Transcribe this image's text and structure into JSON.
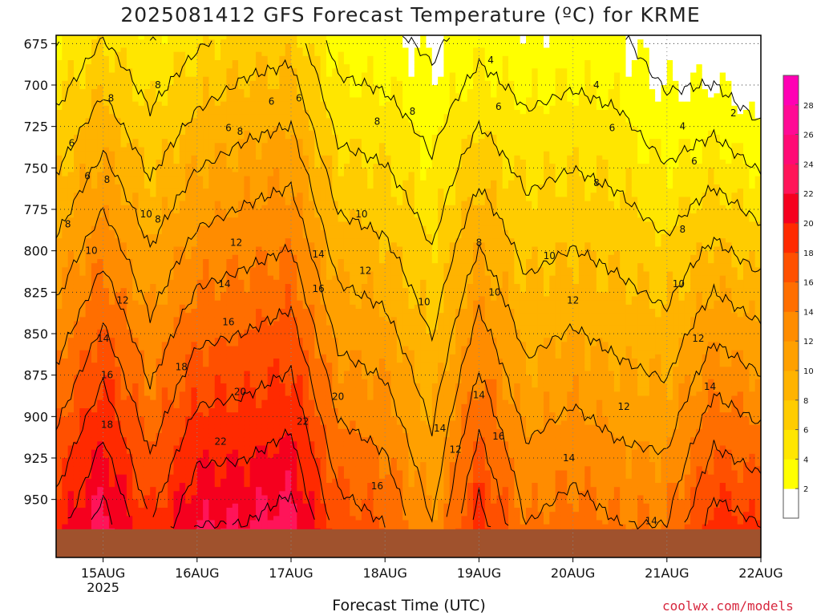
{
  "chart_data": {
    "type": "heatmap",
    "title": "2025081412 GFS Forecast Temperature (ºC) for KRME",
    "xlabel": "Forecast Time (UTC)",
    "ylabel": "",
    "x_ticks": [
      {
        "label": "15AUG",
        "sub": "2025",
        "value": 0
      },
      {
        "label": "16AUG",
        "sub": "",
        "value": 24
      },
      {
        "label": "17AUG",
        "sub": "",
        "value": 48
      },
      {
        "label": "18AUG",
        "sub": "",
        "value": 72
      },
      {
        "label": "19AUG",
        "sub": "",
        "value": 96
      },
      {
        "label": "20AUG",
        "sub": "",
        "value": 120
      },
      {
        "label": "21AUG",
        "sub": "",
        "value": 144
      },
      {
        "label": "22AUG",
        "sub": "",
        "value": 168
      }
    ],
    "xlim": [
      -12,
      168
    ],
    "y_ticks": [
      675,
      700,
      725,
      750,
      775,
      800,
      825,
      850,
      875,
      900,
      925,
      950
    ],
    "ylim": [
      670,
      985
    ],
    "colorbar": {
      "levels": [
        0,
        2,
        4,
        6,
        8,
        10,
        12,
        14,
        16,
        18,
        20,
        22,
        24,
        26,
        28,
        30
      ],
      "labels": [
        "2",
        "4",
        "6",
        "8",
        "10",
        "12",
        "14",
        "16",
        "18",
        "20",
        "22",
        "24",
        "26",
        "28"
      ],
      "colors": [
        "#ffffff",
        "#ffff00",
        "#ffe600",
        "#ffcc00",
        "#ffb300",
        "#ffa000",
        "#ff8c00",
        "#ff6e00",
        "#ff5000",
        "#ff2a00",
        "#f5001e",
        "#ff1459",
        "#ff0a75",
        "#ff0a95",
        "#ff00b4"
      ]
    },
    "profile_times": [
      -12,
      0,
      12,
      24,
      36,
      48,
      60,
      72,
      84,
      96,
      108,
      120,
      132,
      144,
      156,
      168
    ],
    "profile_surface_temp": [
      19,
      23,
      18,
      22,
      22,
      23,
      17,
      16,
      12,
      19,
      14,
      15,
      14,
      14,
      19,
      18
    ],
    "profile_lapse_per_100hPa": [
      5.2,
      5.8,
      4.8,
      5.6,
      5.2,
      5.4,
      4.8,
      4.6,
      3.6,
      5.4,
      4.0,
      4.2,
      4.0,
      4.6,
      6.4,
      6.6
    ],
    "profile_ref_pressure": 965,
    "ground_pressure": 968,
    "ground_color": "#a0522d",
    "contour_labels": [
      {
        "text": "8",
        "x": 2,
        "y": 708
      },
      {
        "text": "8",
        "x": 14,
        "y": 700
      },
      {
        "text": "6",
        "x": -8,
        "y": 735
      },
      {
        "text": "6",
        "x": -4,
        "y": 755
      },
      {
        "text": "8",
        "x": 1,
        "y": 757
      },
      {
        "text": "8",
        "x": -9,
        "y": 784
      },
      {
        "text": "10",
        "x": -3,
        "y": 800
      },
      {
        "text": "10",
        "x": 11,
        "y": 778
      },
      {
        "text": "8",
        "x": 14,
        "y": 781
      },
      {
        "text": "12",
        "x": 5,
        "y": 830
      },
      {
        "text": "14",
        "x": 0,
        "y": 853
      },
      {
        "text": "16",
        "x": 1,
        "y": 875
      },
      {
        "text": "18",
        "x": 1,
        "y": 905
      },
      {
        "text": "22",
        "x": 30,
        "y": 915
      },
      {
        "text": "18",
        "x": 20,
        "y": 870
      },
      {
        "text": "20",
        "x": 35,
        "y": 885
      },
      {
        "text": "22",
        "x": 51,
        "y": 903
      },
      {
        "text": "20",
        "x": 60,
        "y": 888
      },
      {
        "text": "16",
        "x": 32,
        "y": 843
      },
      {
        "text": "14",
        "x": 31,
        "y": 820
      },
      {
        "text": "12",
        "x": 34,
        "y": 795
      },
      {
        "text": "14",
        "x": 55,
        "y": 802
      },
      {
        "text": "16",
        "x": 55,
        "y": 823
      },
      {
        "text": "6",
        "x": 32,
        "y": 726
      },
      {
        "text": "8",
        "x": 35,
        "y": 728
      },
      {
        "text": "6",
        "x": 43,
        "y": 710
      },
      {
        "text": "6",
        "x": 50,
        "y": 708
      },
      {
        "text": "8",
        "x": 70,
        "y": 722
      },
      {
        "text": "10",
        "x": 66,
        "y": 778
      },
      {
        "text": "12",
        "x": 67,
        "y": 812
      },
      {
        "text": "8",
        "x": 79,
        "y": 716
      },
      {
        "text": "10",
        "x": 82,
        "y": 831
      },
      {
        "text": "12",
        "x": 90,
        "y": 920
      },
      {
        "text": "14",
        "x": 86,
        "y": 907
      },
      {
        "text": "16",
        "x": 70,
        "y": 942
      },
      {
        "text": "14",
        "x": 96,
        "y": 887
      },
      {
        "text": "16",
        "x": 101,
        "y": 912
      },
      {
        "text": "10",
        "x": 100,
        "y": 825
      },
      {
        "text": "8",
        "x": 96,
        "y": 795
      },
      {
        "text": "6",
        "x": 101,
        "y": 713
      },
      {
        "text": "4",
        "x": 99,
        "y": 685
      },
      {
        "text": "10",
        "x": 114,
        "y": 803
      },
      {
        "text": "12",
        "x": 120,
        "y": 830
      },
      {
        "text": "14",
        "x": 119,
        "y": 925
      },
      {
        "text": "12",
        "x": 133,
        "y": 894
      },
      {
        "text": "8",
        "x": 126,
        "y": 759
      },
      {
        "text": "6",
        "x": 130,
        "y": 726
      },
      {
        "text": "4",
        "x": 126,
        "y": 700
      },
      {
        "text": "14",
        "x": 140,
        "y": 963
      },
      {
        "text": "10",
        "x": 147,
        "y": 820
      },
      {
        "text": "8",
        "x": 148,
        "y": 787
      },
      {
        "text": "6",
        "x": 151,
        "y": 746
      },
      {
        "text": "4",
        "x": 148,
        "y": 725
      },
      {
        "text": "12",
        "x": 152,
        "y": 853
      },
      {
        "text": "14",
        "x": 155,
        "y": 882
      },
      {
        "text": "2",
        "x": 161,
        "y": 717
      }
    ]
  },
  "credit": "coolwx.com/models"
}
